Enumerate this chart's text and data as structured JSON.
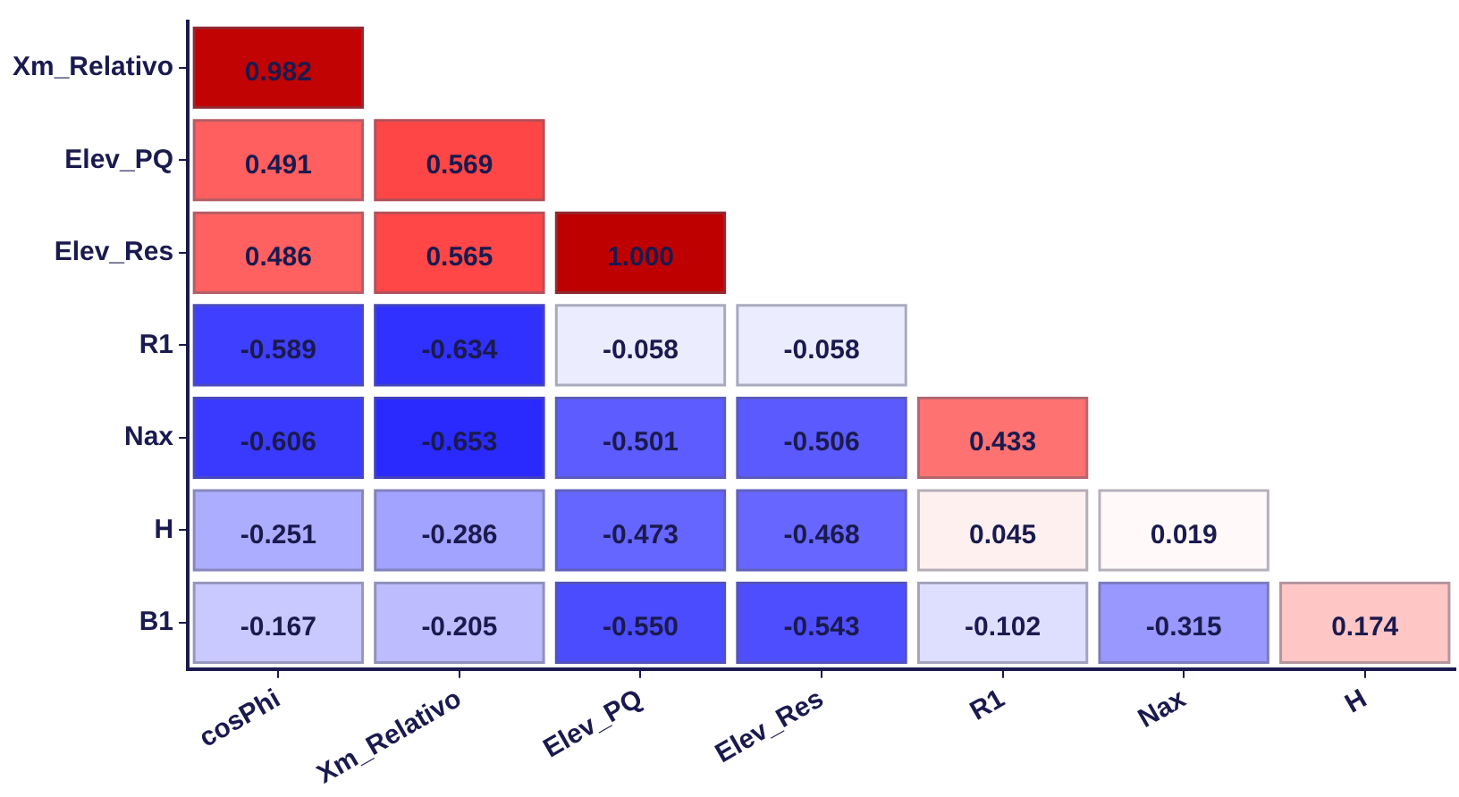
{
  "chart_data": {
    "type": "heatmap",
    "categories": [
      "cosPhi",
      "Xm_Relativo",
      "Elev_PQ",
      "Elev_Res",
      "R1",
      "Nax",
      "H"
    ],
    "y_categories": [
      "Xm_Relativo",
      "Elev_PQ",
      "Elev_Res",
      "R1",
      "Nax",
      "H",
      "B1"
    ],
    "cells": [
      [
        0.982,
        null,
        null,
        null,
        null,
        null,
        null
      ],
      [
        0.491,
        0.569,
        null,
        null,
        null,
        null,
        null
      ],
      [
        0.486,
        0.565,
        1.0,
        null,
        null,
        null,
        null
      ],
      [
        -0.589,
        -0.634,
        -0.058,
        -0.058,
        null,
        null,
        null
      ],
      [
        -0.606,
        -0.653,
        -0.501,
        -0.506,
        0.433,
        null,
        null
      ],
      [
        -0.251,
        -0.286,
        -0.473,
        -0.468,
        0.045,
        0.019,
        null
      ],
      [
        -0.167,
        -0.205,
        -0.55,
        -0.543,
        -0.102,
        -0.315,
        0.174
      ]
    ],
    "cell_labels": [
      [
        "0.982",
        null,
        null,
        null,
        null,
        null,
        null
      ],
      [
        "0.491",
        "0.569",
        null,
        null,
        null,
        null,
        null
      ],
      [
        "0.486",
        "0.565",
        "1.000",
        null,
        null,
        null,
        null
      ],
      [
        "-0.589",
        "-0.634",
        "-0.058",
        "-0.058",
        null,
        null,
        null
      ],
      [
        "-0.606",
        "-0.653",
        "-0.501",
        "-0.506",
        "0.433",
        null,
        null
      ],
      [
        "-0.251",
        "-0.286",
        "-0.473",
        "-0.468",
        "0.045",
        "0.019",
        null
      ],
      [
        "-0.167",
        "-0.205",
        "-0.550",
        "-0.543",
        "-0.102",
        "-0.315",
        "0.174"
      ]
    ],
    "grid": false,
    "legend": false
  }
}
